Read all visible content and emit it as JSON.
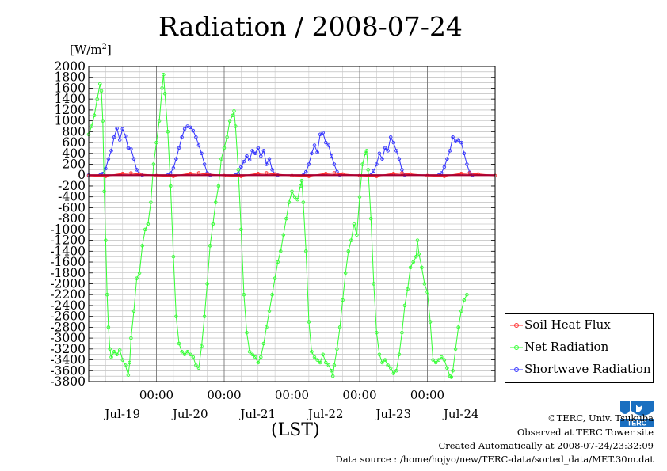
{
  "page": {
    "title": "Radiation / 2008-07-24",
    "unit_label": "[W/m",
    "unit_sup": "2",
    "unit_close": "]",
    "xlabel": "(LST)"
  },
  "legend": [
    {
      "name": "Soil Heat Flux",
      "color": "#ff3030"
    },
    {
      "name": "Net Radiation",
      "color": "#33ff33"
    },
    {
      "name": "Shortwave Radiation",
      "color": "#3333ff"
    }
  ],
  "credits": {
    "copyright": "©TERC, Univ. Tsukuba",
    "observed": "Observed at TERC Tower site",
    "created": "Created Automatically at 2008-07-24/23:32:09",
    "source": "Data source : /home/hojyo/new/TERC-data/sorted_data/MET.30m.dat"
  },
  "logo": {
    "text": "TERC",
    "icon": "terc-logo-icon"
  },
  "chart_data": {
    "type": "line",
    "title": "Radiation / 2008-07-24",
    "ylabel": "[W/m2]",
    "xlabel": "(LST)",
    "ylim": [
      -3800,
      2000
    ],
    "yticks": [
      2000,
      1800,
      1600,
      1400,
      1200,
      1000,
      800,
      600,
      400,
      200,
      0,
      -200,
      -400,
      -600,
      -800,
      -1000,
      -1200,
      -1400,
      -1600,
      -1800,
      -2000,
      -2200,
      -2400,
      -2600,
      -2800,
      -3000,
      -3200,
      -3400,
      -3600,
      -3800
    ],
    "ytick_labels": [
      "2000",
      "1800",
      "1600",
      "1400",
      "1200",
      "1000",
      "800",
      "600",
      "400",
      "200",
      "0",
      "-200",
      "-400",
      "-600",
      "-800",
      "-1000",
      "-1200",
      "-1400",
      "-1600",
      "-1800",
      "-2000",
      "-2200",
      "-2400",
      "-2600",
      "-2800",
      "-3000",
      "-3200",
      "-3400",
      "-3600",
      "-3800"
    ],
    "xlim_hours": [
      0,
      144
    ],
    "x_time_labels": [
      {
        "hour": 24,
        "label": "00:00"
      },
      {
        "hour": 48,
        "label": "00:00"
      },
      {
        "hour": 72,
        "label": "00:00"
      },
      {
        "hour": 96,
        "label": "00:00"
      },
      {
        "hour": 120,
        "label": "00:00"
      }
    ],
    "x_date_labels": [
      {
        "hour": 12,
        "label": "Jul-19"
      },
      {
        "hour": 36,
        "label": "Jul-20"
      },
      {
        "hour": 60,
        "label": "Jul-21"
      },
      {
        "hour": 84,
        "label": "Jul-22"
      },
      {
        "hour": 108,
        "label": "Jul-23"
      },
      {
        "hour": 132,
        "label": "Jul-24"
      }
    ],
    "grid": true,
    "legend_position": "bottom-right outside",
    "x_units": "hours from 2008-07-19 00:00 LST",
    "series": [
      {
        "name": "Soil Heat Flux",
        "color": "#ff3030",
        "points": [
          [
            0,
            -10
          ],
          [
            6,
            -20
          ],
          [
            12,
            30
          ],
          [
            15,
            40
          ],
          [
            18,
            20
          ],
          [
            24,
            -10
          ],
          [
            30,
            -20
          ],
          [
            36,
            30
          ],
          [
            39,
            40
          ],
          [
            42,
            20
          ],
          [
            48,
            -10
          ],
          [
            54,
            -20
          ],
          [
            60,
            30
          ],
          [
            63,
            40
          ],
          [
            66,
            20
          ],
          [
            72,
            -10
          ],
          [
            78,
            -20
          ],
          [
            84,
            30
          ],
          [
            87,
            40
          ],
          [
            90,
            20
          ],
          [
            96,
            -10
          ],
          [
            102,
            -20
          ],
          [
            108,
            30
          ],
          [
            111,
            40
          ],
          [
            114,
            20
          ],
          [
            120,
            -10
          ],
          [
            126,
            -20
          ],
          [
            132,
            30
          ],
          [
            135,
            40
          ],
          [
            138,
            20
          ],
          [
            144,
            -10
          ]
        ]
      },
      {
        "name": "Net Radiation",
        "color": "#33ff33",
        "points": [
          [
            0,
            750
          ],
          [
            1,
            900
          ],
          [
            2,
            1100
          ],
          [
            3,
            1400
          ],
          [
            4,
            1680
          ],
          [
            4.5,
            1550
          ],
          [
            5,
            1000
          ],
          [
            5.5,
            -300
          ],
          [
            6,
            -1200
          ],
          [
            6.5,
            -2200
          ],
          [
            7,
            -2800
          ],
          [
            7.5,
            -3200
          ],
          [
            8,
            -3350
          ],
          [
            9,
            -3250
          ],
          [
            10,
            -3300
          ],
          [
            11,
            -3220
          ],
          [
            12,
            -3400
          ],
          [
            13,
            -3500
          ],
          [
            14,
            -3680
          ],
          [
            14.5,
            -3450
          ],
          [
            15,
            -3000
          ],
          [
            16,
            -2500
          ],
          [
            17,
            -1900
          ],
          [
            18,
            -1800
          ],
          [
            19,
            -1300
          ],
          [
            20,
            -1000
          ],
          [
            21,
            -900
          ],
          [
            22,
            -500
          ],
          [
            23,
            200
          ],
          [
            24,
            600
          ],
          [
            25,
            1000
          ],
          [
            26,
            1600
          ],
          [
            26.5,
            1850
          ],
          [
            27,
            1500
          ],
          [
            28,
            800
          ],
          [
            29,
            -200
          ],
          [
            30,
            -1500
          ],
          [
            31,
            -2600
          ],
          [
            32,
            -3100
          ],
          [
            33,
            -3250
          ],
          [
            34,
            -3300
          ],
          [
            35,
            -3250
          ],
          [
            36,
            -3300
          ],
          [
            37,
            -3350
          ],
          [
            38,
            -3500
          ],
          [
            39,
            -3550
          ],
          [
            40,
            -3150
          ],
          [
            41,
            -2600
          ],
          [
            42,
            -2000
          ],
          [
            43,
            -1300
          ],
          [
            44,
            -900
          ],
          [
            45,
            -500
          ],
          [
            46,
            -200
          ],
          [
            47,
            300
          ],
          [
            48,
            500
          ],
          [
            49,
            700
          ],
          [
            50,
            1000
          ],
          [
            51,
            1100
          ],
          [
            51.5,
            1180
          ],
          [
            52,
            900
          ],
          [
            53,
            100
          ],
          [
            54,
            -1000
          ],
          [
            55,
            -2200
          ],
          [
            56,
            -2900
          ],
          [
            57,
            -3250
          ],
          [
            58,
            -3300
          ],
          [
            59,
            -3350
          ],
          [
            60,
            -3450
          ],
          [
            61,
            -3350
          ],
          [
            62,
            -3100
          ],
          [
            63,
            -2800
          ],
          [
            64,
            -2500
          ],
          [
            65,
            -2200
          ],
          [
            66,
            -1900
          ],
          [
            67,
            -1600
          ],
          [
            68,
            -1400
          ],
          [
            69,
            -1100
          ],
          [
            70,
            -800
          ],
          [
            71,
            -500
          ],
          [
            72,
            -300
          ],
          [
            73,
            -400
          ],
          [
            74,
            -450
          ],
          [
            75,
            -200
          ],
          [
            75.5,
            -100
          ],
          [
            76,
            -500
          ],
          [
            77,
            -1400
          ],
          [
            78,
            -2700
          ],
          [
            79,
            -3250
          ],
          [
            80,
            -3350
          ],
          [
            81,
            -3400
          ],
          [
            82,
            -3450
          ],
          [
            83,
            -3300
          ],
          [
            84,
            -3450
          ],
          [
            85,
            -3500
          ],
          [
            86,
            -3600
          ],
          [
            86.5,
            -3700
          ],
          [
            87,
            -3500
          ],
          [
            88,
            -3200
          ],
          [
            89,
            -2800
          ],
          [
            90,
            -2300
          ],
          [
            91,
            -1800
          ],
          [
            92,
            -1400
          ],
          [
            93,
            -1200
          ],
          [
            94,
            -900
          ],
          [
            95,
            -1100
          ],
          [
            96,
            -400
          ],
          [
            97,
            200
          ],
          [
            98,
            400
          ],
          [
            98.5,
            450
          ],
          [
            99,
            100
          ],
          [
            100,
            -800
          ],
          [
            101,
            -2000
          ],
          [
            102,
            -2900
          ],
          [
            103,
            -3300
          ],
          [
            104,
            -3450
          ],
          [
            105,
            -3400
          ],
          [
            106,
            -3500
          ],
          [
            107,
            -3550
          ],
          [
            108,
            -3650
          ],
          [
            109,
            -3600
          ],
          [
            110,
            -3300
          ],
          [
            111,
            -2900
          ],
          [
            112,
            -2400
          ],
          [
            113,
            -2100
          ],
          [
            114,
            -1700
          ],
          [
            115,
            -1600
          ],
          [
            116,
            -1500
          ],
          [
            116.5,
            -1200
          ],
          [
            117,
            -1450
          ],
          [
            118,
            -1700
          ],
          [
            119,
            -2000
          ],
          [
            120,
            -2150
          ],
          [
            121,
            -2700
          ],
          [
            122,
            -3400
          ],
          [
            123,
            -3450
          ],
          [
            124,
            -3400
          ],
          [
            125,
            -3350
          ],
          [
            126,
            -3400
          ],
          [
            127,
            -3550
          ],
          [
            128,
            -3700
          ],
          [
            128.5,
            -3720
          ],
          [
            129,
            -3600
          ],
          [
            130,
            -3200
          ],
          [
            131,
            -2800
          ],
          [
            132,
            -2500
          ],
          [
            133,
            -2300
          ],
          [
            134,
            -2200
          ]
        ]
      },
      {
        "name": "Shortwave Radiation",
        "color": "#3333ff",
        "points": [
          [
            0,
            0
          ],
          [
            4,
            0
          ],
          [
            5,
            30
          ],
          [
            6,
            120
          ],
          [
            7,
            300
          ],
          [
            8,
            450
          ],
          [
            9,
            700
          ],
          [
            10,
            860
          ],
          [
            11,
            650
          ],
          [
            12,
            850
          ],
          [
            13,
            720
          ],
          [
            14,
            500
          ],
          [
            15,
            480
          ],
          [
            16,
            300
          ],
          [
            17,
            100
          ],
          [
            18,
            20
          ],
          [
            19,
            0
          ],
          [
            28,
            0
          ],
          [
            29,
            40
          ],
          [
            30,
            130
          ],
          [
            31,
            300
          ],
          [
            32,
            500
          ],
          [
            33,
            700
          ],
          [
            34,
            850
          ],
          [
            35,
            900
          ],
          [
            36,
            880
          ],
          [
            37,
            820
          ],
          [
            38,
            700
          ],
          [
            39,
            550
          ],
          [
            40,
            400
          ],
          [
            41,
            200
          ],
          [
            42,
            40
          ],
          [
            43,
            0
          ],
          [
            52,
            0
          ],
          [
            53,
            30
          ],
          [
            54,
            150
          ],
          [
            55,
            250
          ],
          [
            56,
            350
          ],
          [
            57,
            280
          ],
          [
            58,
            450
          ],
          [
            59,
            400
          ],
          [
            60,
            500
          ],
          [
            61,
            350
          ],
          [
            62,
            450
          ],
          [
            63,
            200
          ],
          [
            64,
            300
          ],
          [
            65,
            100
          ],
          [
            66,
            20
          ],
          [
            67,
            0
          ],
          [
            76,
            0
          ],
          [
            77,
            60
          ],
          [
            78,
            200
          ],
          [
            79,
            400
          ],
          [
            80,
            550
          ],
          [
            81,
            420
          ],
          [
            82,
            750
          ],
          [
            83,
            780
          ],
          [
            84,
            600
          ],
          [
            85,
            550
          ],
          [
            86,
            350
          ],
          [
            87,
            200
          ],
          [
            88,
            60
          ],
          [
            89,
            0
          ],
          [
            100,
            0
          ],
          [
            101,
            80
          ],
          [
            102,
            200
          ],
          [
            103,
            400
          ],
          [
            104,
            300
          ],
          [
            105,
            500
          ],
          [
            106,
            450
          ],
          [
            107,
            700
          ],
          [
            108,
            600
          ],
          [
            109,
            450
          ],
          [
            110,
            300
          ],
          [
            111,
            100
          ],
          [
            112,
            0
          ],
          [
            124,
            0
          ],
          [
            125,
            40
          ],
          [
            126,
            150
          ],
          [
            127,
            300
          ],
          [
            128,
            450
          ],
          [
            129,
            700
          ],
          [
            130,
            620
          ],
          [
            131,
            650
          ],
          [
            132,
            600
          ],
          [
            133,
            400
          ],
          [
            134,
            200
          ],
          [
            135,
            50
          ],
          [
            136,
            0
          ]
        ]
      }
    ]
  }
}
